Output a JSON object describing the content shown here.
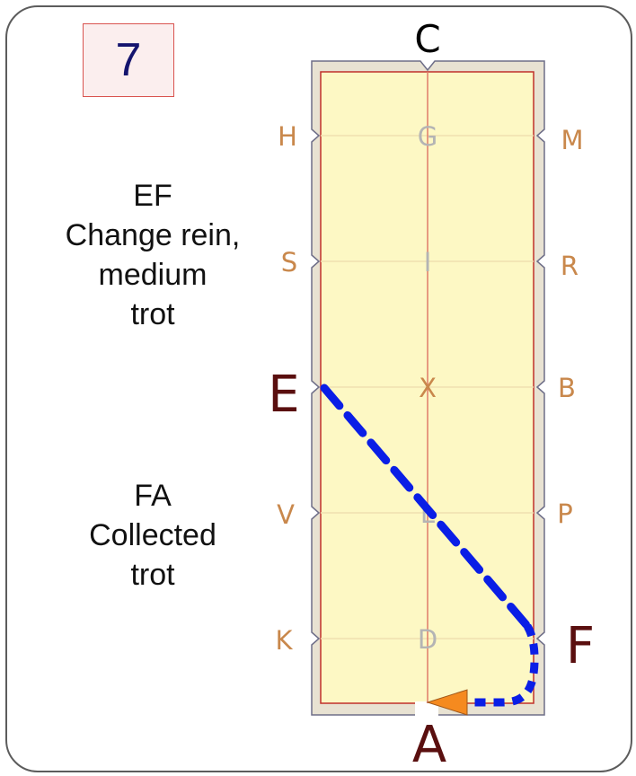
{
  "movement_number": "7",
  "instructions": [
    {
      "lines": [
        "EF",
        "Change rein,",
        "medium",
        "trot"
      ]
    },
    {
      "lines": [
        "FA",
        "Collected",
        "trot"
      ]
    }
  ],
  "arena": {
    "top_letter": "C",
    "bottom_letter": "A",
    "left_letters": [
      "H",
      "S",
      "E",
      "V",
      "K"
    ],
    "right_letters": [
      "M",
      "R",
      "B",
      "P",
      "F"
    ],
    "center_letters": [
      "G",
      "I",
      "X",
      "L",
      "D"
    ]
  },
  "colors": {
    "arena_fill": "#fdf8c4",
    "arena_border": "#d9d0b8",
    "centerline": "#e07a6a",
    "path": "#0a1ee6",
    "arrow": "#f58a1f",
    "big_letter": "#5a0f0f",
    "small_letter": "#c9884c"
  }
}
